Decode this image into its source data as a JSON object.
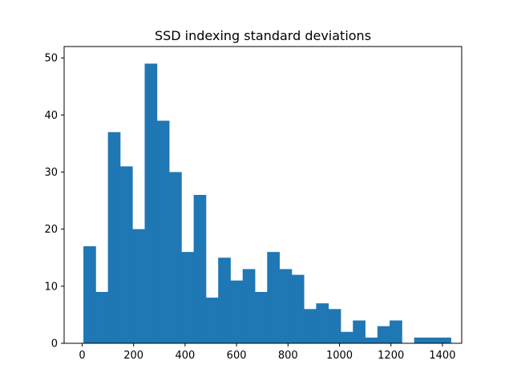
{
  "chart_data": {
    "type": "bar",
    "title": "SSD indexing standard deviations",
    "xlabel": "",
    "ylabel": "",
    "xlim": [
      -70,
      1475
    ],
    "ylim": [
      0,
      52
    ],
    "x_ticks": [
      0,
      200,
      400,
      600,
      800,
      1000,
      1200,
      1400
    ],
    "y_ticks": [
      0,
      10,
      20,
      30,
      40,
      50
    ],
    "grid": false,
    "bar_color": "#1f77b4",
    "bins": [
      {
        "start": 5,
        "end": 52.6,
        "count": 17
      },
      {
        "start": 52.6,
        "end": 100.2,
        "count": 9
      },
      {
        "start": 100.2,
        "end": 147.8,
        "count": 37
      },
      {
        "start": 147.8,
        "end": 195.4,
        "count": 31
      },
      {
        "start": 195.4,
        "end": 243,
        "count": 20
      },
      {
        "start": 243,
        "end": 290.6,
        "count": 49
      },
      {
        "start": 290.6,
        "end": 338.2,
        "count": 39
      },
      {
        "start": 338.2,
        "end": 385.8,
        "count": 30
      },
      {
        "start": 385.8,
        "end": 433.4,
        "count": 16
      },
      {
        "start": 433.4,
        "end": 481,
        "count": 26
      },
      {
        "start": 481,
        "end": 528.6,
        "count": 8
      },
      {
        "start": 528.6,
        "end": 576.2,
        "count": 15
      },
      {
        "start": 576.2,
        "end": 623.8,
        "count": 11
      },
      {
        "start": 623.8,
        "end": 671.4,
        "count": 13
      },
      {
        "start": 671.4,
        "end": 719,
        "count": 9
      },
      {
        "start": 719,
        "end": 766.6,
        "count": 16
      },
      {
        "start": 766.6,
        "end": 814.2,
        "count": 13
      },
      {
        "start": 814.2,
        "end": 861.8,
        "count": 12
      },
      {
        "start": 861.8,
        "end": 909.4,
        "count": 6
      },
      {
        "start": 909.4,
        "end": 957,
        "count": 7
      },
      {
        "start": 957,
        "end": 1004.6,
        "count": 6
      },
      {
        "start": 1004.6,
        "end": 1052.2,
        "count": 2
      },
      {
        "start": 1052.2,
        "end": 1099.8,
        "count": 4
      },
      {
        "start": 1099.8,
        "end": 1147.4,
        "count": 1
      },
      {
        "start": 1147.4,
        "end": 1195,
        "count": 3
      },
      {
        "start": 1195,
        "end": 1242.6,
        "count": 4
      },
      {
        "start": 1242.6,
        "end": 1290.2,
        "count": 0
      },
      {
        "start": 1290.2,
        "end": 1337.8,
        "count": 1
      },
      {
        "start": 1337.8,
        "end": 1385.4,
        "count": 1
      },
      {
        "start": 1385.4,
        "end": 1433,
        "count": 1
      }
    ]
  }
}
